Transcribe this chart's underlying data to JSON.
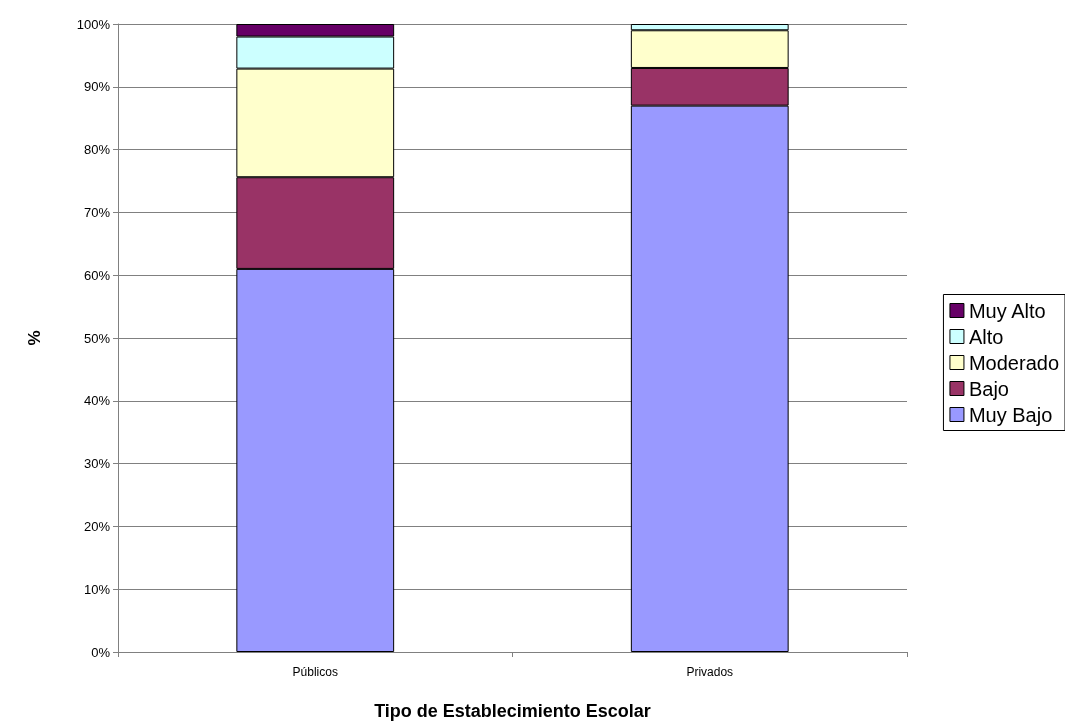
{
  "chart_data": {
    "type": "bar",
    "stacked": true,
    "xlabel": "Tipo de Establecimiento Escolar",
    "ylabel": "%",
    "categories": [
      "Públicos",
      "Privados"
    ],
    "series": [
      {
        "name": "Muy Bajo",
        "color": "#9999ff",
        "values": [
          61.0,
          87.0
        ]
      },
      {
        "name": "Bajo",
        "color": "#993366",
        "values": [
          14.6,
          6.0
        ]
      },
      {
        "name": "Moderado",
        "color": "#ffffcc",
        "values": [
          17.3,
          6.0
        ]
      },
      {
        "name": "Alto",
        "color": "#ccffff",
        "values": [
          5.1,
          1.0
        ]
      },
      {
        "name": "Muy Alto",
        "color": "#660066",
        "values": [
          2.0,
          0
        ]
      }
    ],
    "ylim": [
      0,
      100
    ],
    "yticks": [
      {
        "value": 0,
        "label": "0%"
      },
      {
        "value": 10,
        "label": "10%"
      },
      {
        "value": 20,
        "label": "20%"
      },
      {
        "value": 30,
        "label": "30%"
      },
      {
        "value": 40,
        "label": "40%"
      },
      {
        "value": 50,
        "label": "50%"
      },
      {
        "value": 60,
        "label": "60%"
      },
      {
        "value": 70,
        "label": "70%"
      },
      {
        "value": 80,
        "label": "80%"
      },
      {
        "value": 90,
        "label": "90%"
      },
      {
        "value": 100,
        "label": "100%"
      }
    ],
    "grid": "y",
    "legend": "right"
  }
}
